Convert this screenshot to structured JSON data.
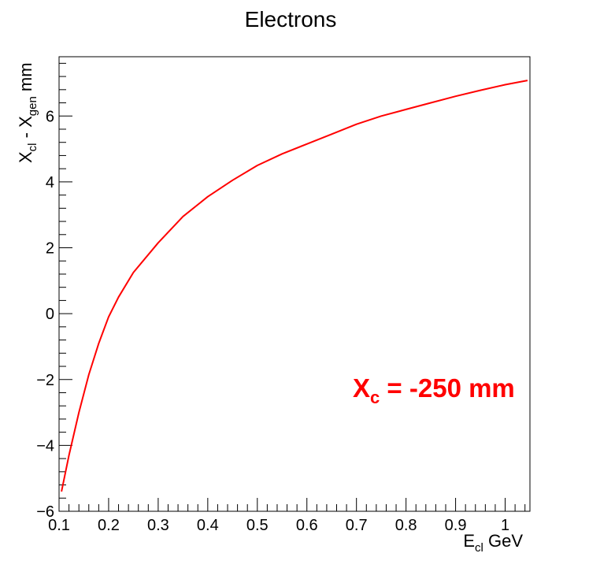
{
  "chart_data": {
    "type": "line",
    "title": "Electrons",
    "xlabel": {
      "main": "E",
      "sub": "cl",
      "unit": " GeV"
    },
    "ylabel": {
      "main": "X",
      "sub1": "cl",
      "mid": " - X",
      "sub2": "gen",
      "unit": " mm"
    },
    "xlim": [
      0.1,
      1.05
    ],
    "ylim": [
      -6,
      7.8
    ],
    "x_ticks": [
      0.1,
      0.2,
      0.3,
      0.4,
      0.5,
      0.6,
      0.7,
      0.8,
      0.9,
      1
    ],
    "x_tick_labels": [
      "0.1",
      "0.2",
      "0.3",
      "0.4",
      "0.5",
      "0.6",
      "0.7",
      "0.8",
      "0.9",
      "1"
    ],
    "y_ticks": [
      -6,
      -4,
      -2,
      0,
      2,
      4,
      6
    ],
    "y_tick_labels": [
      "−6",
      "−4",
      "−2",
      "0",
      "2",
      "4",
      "6"
    ],
    "grid": false,
    "series": [
      {
        "color": "#ff0000",
        "x": [
          0.105,
          0.12,
          0.14,
          0.16,
          0.18,
          0.2,
          0.22,
          0.25,
          0.3,
          0.35,
          0.4,
          0.45,
          0.5,
          0.55,
          0.6,
          0.65,
          0.7,
          0.75,
          0.8,
          0.85,
          0.9,
          0.95,
          1.0,
          1.045
        ],
        "y": [
          -5.4,
          -4.3,
          -3.0,
          -1.85,
          -0.9,
          -0.1,
          0.5,
          1.25,
          2.15,
          2.95,
          3.55,
          4.05,
          4.5,
          4.85,
          5.15,
          5.45,
          5.75,
          6.0,
          6.2,
          6.4,
          6.6,
          6.78,
          6.95,
          7.08
        ]
      }
    ],
    "annotation": {
      "color": "#ff0000",
      "main": "X",
      "sub": "c",
      "rest": " = -250 mm"
    }
  }
}
